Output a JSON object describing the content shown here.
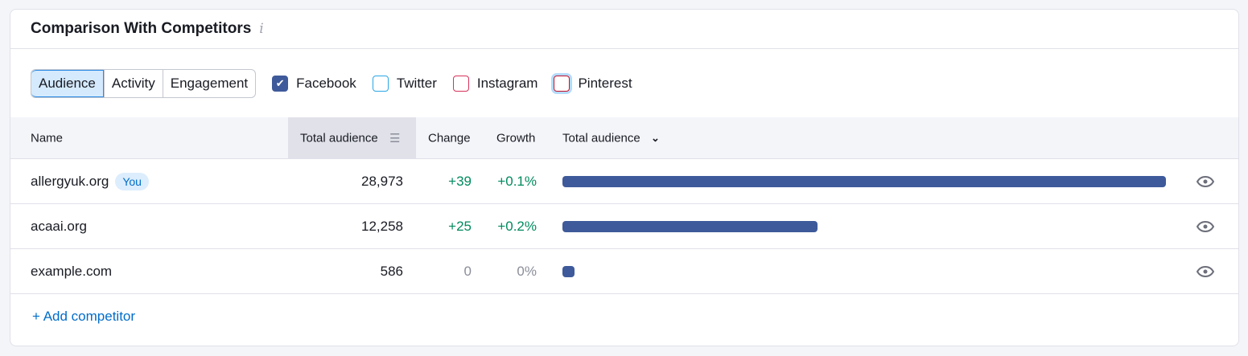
{
  "title": "Comparison With Competitors",
  "info_icon": "i",
  "tabs": [
    "Audience",
    "Activity",
    "Engagement"
  ],
  "networks": [
    {
      "label": "Facebook",
      "checked": true,
      "color": "#3e5a9a"
    },
    {
      "label": "Twitter",
      "checked": false,
      "color": "#2aa6e6"
    },
    {
      "label": "Instagram",
      "checked": false,
      "color": "#d6325a"
    },
    {
      "label": "Pinterest",
      "checked": false,
      "color": "#c0132c"
    }
  ],
  "columns": {
    "name": "Name",
    "total": "Total audience",
    "change": "Change",
    "growth": "Growth",
    "bar": "Total audience"
  },
  "rows": [
    {
      "name": "allergyuk.org",
      "badge": "You",
      "total": "28,973",
      "value": 28973,
      "change": "+39",
      "growth": "+0.1%"
    },
    {
      "name": "acaai.org",
      "total": "12,258",
      "value": 12258,
      "change": "+25",
      "growth": "+0.2%"
    },
    {
      "name": "example.com",
      "total": "586",
      "value": 586,
      "change": "0",
      "growth": "0%"
    }
  ],
  "add_label": "+ Add competitor"
}
